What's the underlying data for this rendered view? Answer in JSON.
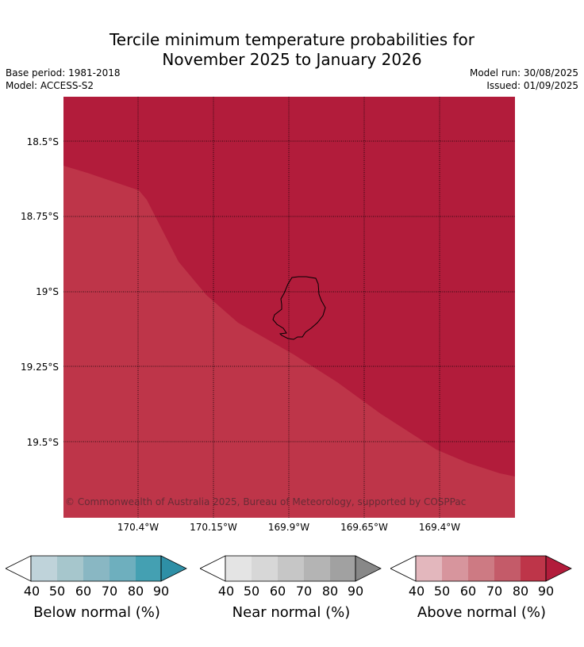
{
  "title_line1": "Tercile minimum temperature probabilities for",
  "title_line2": "November 2025 to January 2026",
  "base_period": "Base period: 1981-2018",
  "model": "Model: ACCESS-S2",
  "model_run": "Model run: 30/08/2025",
  "issued": "Issued: 01/09/2025",
  "map": {
    "latitude_labels": [
      "18.5°S",
      "18.75°S",
      "19°S",
      "19.25°S",
      "19.5°S"
    ],
    "longitude_labels": [
      "170.4°W",
      "170.15°W",
      "169.9°W",
      "169.65°W",
      "169.4°W"
    ],
    "copyright": "© Commonwealth of Australia 2025, Bureau of Meteorology, supported by COSPPac",
    "fill_colors": {
      "above_90": "#b21c3b",
      "above_80": "#be3549"
    }
  },
  "colorbars": [
    {
      "label": "Below normal (%)",
      "ticks": [
        "40",
        "50",
        "60",
        "70",
        "80",
        "90"
      ],
      "colors": [
        "#bfd3da",
        "#a6c6cc",
        "#89b7c3",
        "#6eafbe",
        "#44a0b2",
        "#2e8fa6"
      ]
    },
    {
      "label": "Near normal (%)",
      "ticks": [
        "40",
        "50",
        "60",
        "70",
        "80",
        "90"
      ],
      "colors": [
        "#e4e4e4",
        "#d7d7d7",
        "#c6c6c6",
        "#b4b4b4",
        "#a1a1a1",
        "#888888"
      ]
    },
    {
      "label": "Above normal (%)",
      "ticks": [
        "40",
        "50",
        "60",
        "70",
        "80",
        "90"
      ],
      "colors": [
        "#e3b7bd",
        "#d7959d",
        "#cd7a83",
        "#c45b69",
        "#be3549",
        "#b21c3b"
      ]
    }
  ]
}
